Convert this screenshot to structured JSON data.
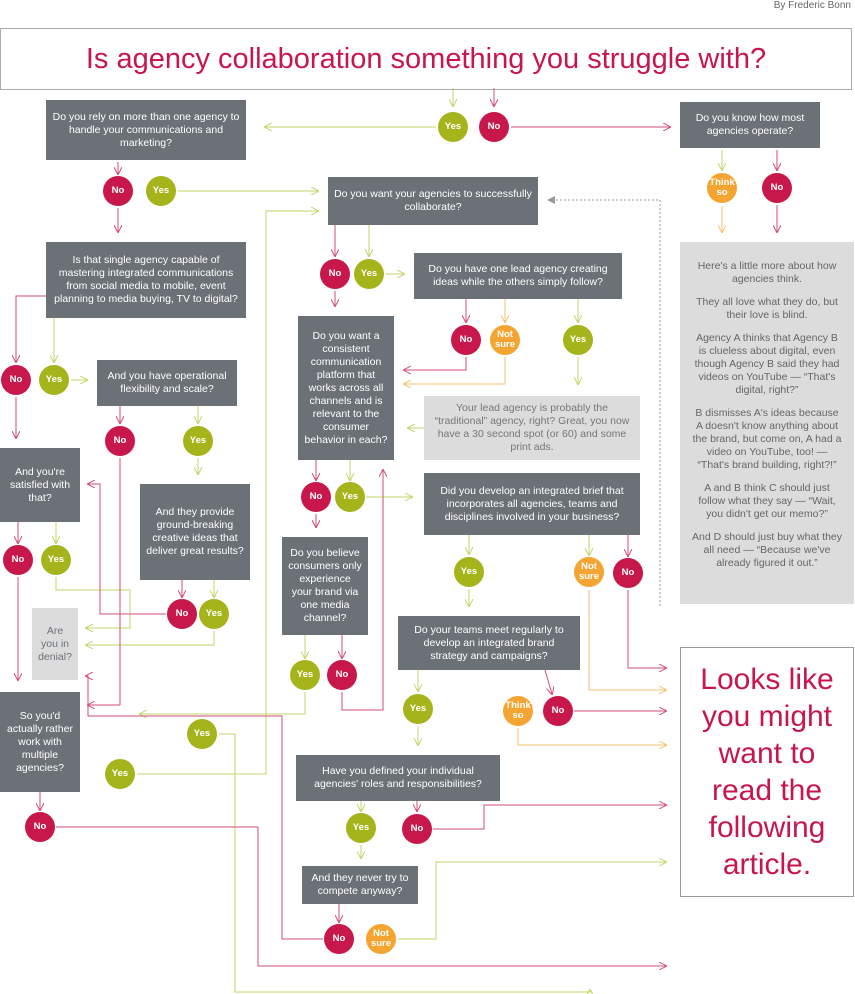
{
  "byline": "By Frederic Bonn",
  "title": "Is agency collaboration something you struggle with?",
  "questions": [
    "Do you rely on more than one agency to handle your communications and marketing?",
    "Do you know how most agencies operate?",
    "Do you want your agencies to successfully collaborate?",
    "Is that single agency capable of mastering integrated communications from social media to mobile, event planning to media buying, TV to digital?",
    "Do you have one lead agency creating ideas while the others simply follow?",
    "Do you want a consistent communication platform that works across all channels and is relevant to the consumer behavior in each?",
    "And you have operational flexibility and scale?",
    "And you're satisfied with that?",
    "And they provide ground-breaking creative ideas that deliver great results?",
    "Did you develop an integrated brief that incorporates all agencies, teams and disciplines involved in your business?",
    "Do you believe consumers only experience your brand via one media channel?",
    "Are you in denial?",
    "Do your teams meet regularly to develop an integrated brand strategy and campaigns?",
    "So you'd actually rather work with multiple agencies?",
    "Have you defined your individual agencies' roles and responsibilities?",
    "And they never try to compete anyway?"
  ],
  "answers": [
    "Yes",
    "No",
    "No",
    "Yes",
    "Think so",
    "No",
    "No",
    "Yes",
    "No",
    "Not sure",
    "Yes",
    "No",
    "Yes",
    "No",
    "Yes",
    "No",
    "Yes",
    "No",
    "Yes",
    "Yes",
    "Not sure",
    "No",
    "No",
    "Yes",
    "Yes",
    "No",
    "Think so",
    "No",
    "Yes",
    "Yes",
    "Yes",
    "No",
    "Yes",
    "No",
    "No",
    "Not sure"
  ],
  "info_panel": [
    "Here's a little more about how agencies think.",
    "They all love what they do, but their love is blind.",
    "Agency A thinks that Agency B is clueless about digital, even though Agency B said they had videos on YouTube — “That's digital, right?”",
    "B dismisses A's ideas because A doesn't know anything about the brand, but come on, A had a video on YouTube, too! — “That's brand building, right?!”",
    "A and B think C should just follow what they say — “Wait, you didn't get our memo?”",
    "And D should just buy what they all need — “Because we've already figured it out.”"
  ],
  "lead_agency_note": "Your lead agency is probably the “traditional” agency, right? Great, you now have a 30 second spot (or 60) and some print ads.",
  "result": "Looks like you might want to read the following article."
}
